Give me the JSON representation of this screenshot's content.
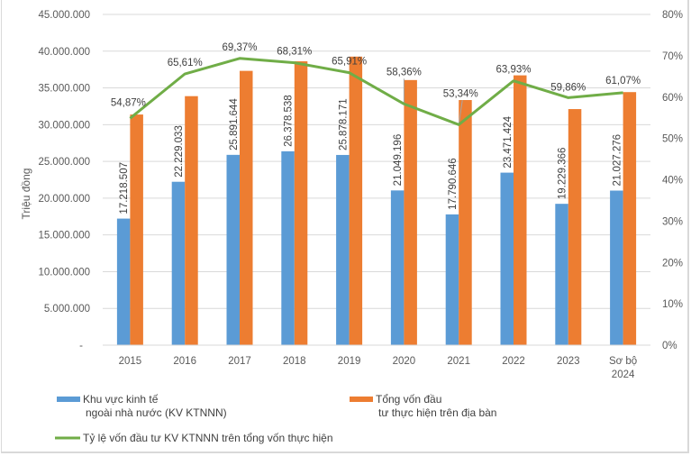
{
  "chart_data": {
    "type": "bar",
    "title": "",
    "xlabel": "",
    "ylabel": "Triệu đồng",
    "y2label": "",
    "categories": [
      "2015",
      "2016",
      "2017",
      "2018",
      "2019",
      "2020",
      "2021",
      "2022",
      "2023",
      "Sơ bộ\n2024"
    ],
    "ylim": [
      0,
      45000000
    ],
    "y2lim": [
      0,
      0.8
    ],
    "y_ticks": [
      "-",
      "5.000.000",
      "10.000.000",
      "15.000.000",
      "20.000.000",
      "25.000.000",
      "30.000.000",
      "35.000.000",
      "40.000.000",
      "45.000.000"
    ],
    "y2_ticks": [
      "0%",
      "10%",
      "20%",
      "30%",
      "40%",
      "50%",
      "60%",
      "70%",
      "80%"
    ],
    "grid": true,
    "legend_position": "bottom",
    "series": [
      {
        "name": "Khu vực kinh tế\nngoài nhà nước (KV KTNNN)",
        "type": "bar",
        "axis": "left",
        "color": "#5b9bd5",
        "values": [
          17218507,
          22229033,
          25891644,
          26378538,
          25878171,
          21049196,
          17790646,
          23471424,
          19229366,
          21027276
        ],
        "labels": [
          "17.218.507",
          "22.229.033",
          "25.891.644",
          "26.378.538",
          "25.878.171",
          "21.049.196",
          "17.790.646",
          "23.471.424",
          "19.229.366",
          "21.027.276"
        ]
      },
      {
        "name": "Tổng vốn đầu\ntư thực hiện trên địa bàn",
        "type": "bar",
        "axis": "left",
        "color": "#ed7d31",
        "values": [
          31380000,
          33880000,
          37320000,
          38620000,
          39260000,
          36070000,
          33350000,
          36710000,
          32120000,
          34430000
        ],
        "labels": []
      },
      {
        "name": "Tỷ lệ vốn đầu tư KV KTNNN trên tổng vốn thực hiện",
        "type": "line",
        "axis": "right",
        "color": "#70ad47",
        "values": [
          0.5487,
          0.6561,
          0.6937,
          0.6831,
          0.6591,
          0.5836,
          0.5334,
          0.6393,
          0.5986,
          0.6107
        ],
        "labels": [
          "54,87%",
          "65,61%",
          "69,37%",
          "68,31%",
          "65,91%",
          "58,36%",
          "53,34%",
          "63,93%",
          "59,86%",
          "61,07%"
        ]
      }
    ]
  }
}
